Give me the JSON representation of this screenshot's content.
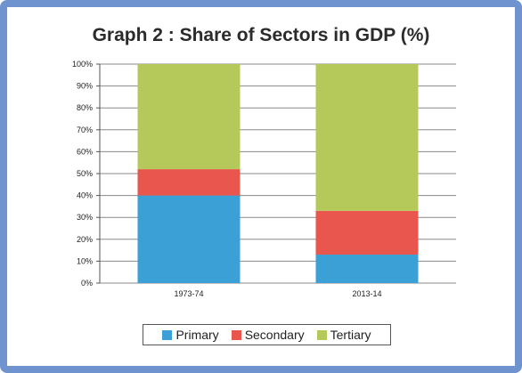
{
  "chart_data": {
    "type": "bar",
    "stacked": true,
    "title": "Graph 2 : Share of Sectors in GDP (%)",
    "categories": [
      "1973-74",
      "2013-14"
    ],
    "series": [
      {
        "name": "Primary",
        "color": "#3aa0d6",
        "values": [
          40,
          13
        ]
      },
      {
        "name": "Secondary",
        "color": "#e8564e",
        "values": [
          12,
          20
        ]
      },
      {
        "name": "Tertiary",
        "color": "#b5c95a",
        "values": [
          48,
          67
        ]
      }
    ],
    "ylim": [
      0,
      100
    ],
    "yticks": [
      "0%",
      "10%",
      "20%",
      "30%",
      "40%",
      "50%",
      "60%",
      "70%",
      "80%",
      "90%",
      "100%"
    ],
    "grid": true,
    "legend_position": "bottom"
  }
}
